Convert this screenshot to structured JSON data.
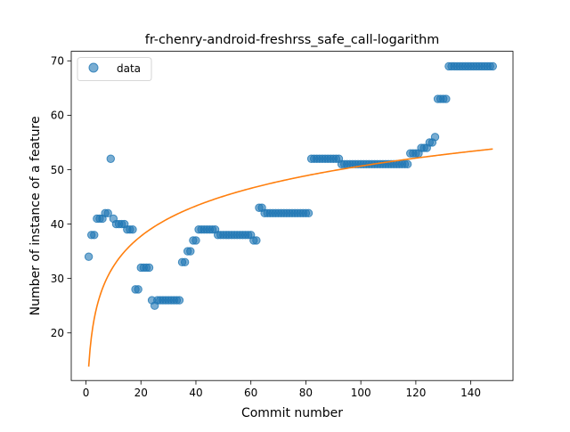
{
  "chart_data": {
    "type": "scatter",
    "title": "fr-chenry-android-freshrss_safe_call-logarithm",
    "xlabel": "Commit number",
    "ylabel": "Number of instance of a feature",
    "xlim": [
      -5.35,
      155.35
    ],
    "ylim": [
      11.25,
      71.75
    ],
    "xticks": [
      0,
      20,
      40,
      60,
      80,
      100,
      120,
      140
    ],
    "yticks": [
      20,
      30,
      40,
      50,
      60,
      70
    ],
    "legend": {
      "placement": "upper-left",
      "entries": [
        {
          "label": "data",
          "marker": "circle",
          "color": "#1f77b4"
        }
      ]
    },
    "grid": false,
    "colors": {
      "data": "#1f77b4",
      "fit": "#ff7f0e"
    },
    "series": [
      {
        "name": "data",
        "kind": "scatter",
        "x": [
          1,
          2,
          3,
          4,
          5,
          6,
          7,
          8,
          9,
          10,
          11,
          12,
          13,
          14,
          15,
          16,
          17,
          18,
          19,
          20,
          21,
          22,
          23,
          24,
          25,
          26,
          27,
          28,
          29,
          30,
          31,
          32,
          33,
          34,
          35,
          36,
          37,
          38,
          39,
          40,
          41,
          42,
          43,
          44,
          45,
          46,
          47,
          48,
          49,
          50,
          51,
          52,
          53,
          54,
          55,
          56,
          57,
          58,
          59,
          60,
          61,
          62,
          63,
          64,
          65,
          66,
          67,
          68,
          69,
          70,
          71,
          72,
          73,
          74,
          75,
          76,
          77,
          78,
          79,
          80,
          81,
          82,
          83,
          84,
          85,
          86,
          87,
          88,
          89,
          90,
          91,
          92,
          93,
          94,
          95,
          96,
          97,
          98,
          99,
          100,
          101,
          102,
          103,
          104,
          105,
          106,
          107,
          108,
          109,
          110,
          111,
          112,
          113,
          114,
          115,
          116,
          117,
          118,
          119,
          120,
          121,
          122,
          123,
          124,
          125,
          126,
          127,
          128,
          129,
          130,
          131,
          132,
          133,
          134,
          135,
          136,
          137,
          138,
          139,
          140,
          141,
          142,
          143,
          144,
          145,
          146,
          147,
          148
        ],
        "y": [
          34,
          38,
          38,
          41,
          41,
          41,
          42,
          42,
          52,
          41,
          40,
          40,
          40,
          40,
          39,
          39,
          39,
          28,
          28,
          32,
          32,
          32,
          32,
          26,
          25,
          26,
          26,
          26,
          26,
          26,
          26,
          26,
          26,
          26,
          33,
          33,
          35,
          35,
          37,
          37,
          39,
          39,
          39,
          39,
          39,
          39,
          39,
          38,
          38,
          38,
          38,
          38,
          38,
          38,
          38,
          38,
          38,
          38,
          38,
          38,
          37,
          37,
          43,
          43,
          42,
          42,
          42,
          42,
          42,
          42,
          42,
          42,
          42,
          42,
          42,
          42,
          42,
          42,
          42,
          42,
          42,
          52,
          52,
          52,
          52,
          52,
          52,
          52,
          52,
          52,
          52,
          52,
          51,
          51,
          51,
          51,
          51,
          51,
          51,
          51,
          51,
          51,
          51,
          51,
          51,
          51,
          51,
          51,
          51,
          51,
          51,
          51,
          51,
          51,
          51,
          51,
          51,
          53,
          53,
          53,
          53,
          54,
          54,
          54,
          55,
          55,
          56,
          63,
          63,
          63,
          63,
          69,
          69,
          69,
          69,
          69,
          69,
          69,
          69,
          69,
          69,
          69,
          69,
          69,
          69,
          69,
          69,
          69
        ]
      },
      {
        "name": "fit",
        "kind": "line",
        "model": "log",
        "x_range": [
          1,
          148
        ],
        "y_at_start": 13.8,
        "y_at_end": 53.8
      }
    ]
  }
}
